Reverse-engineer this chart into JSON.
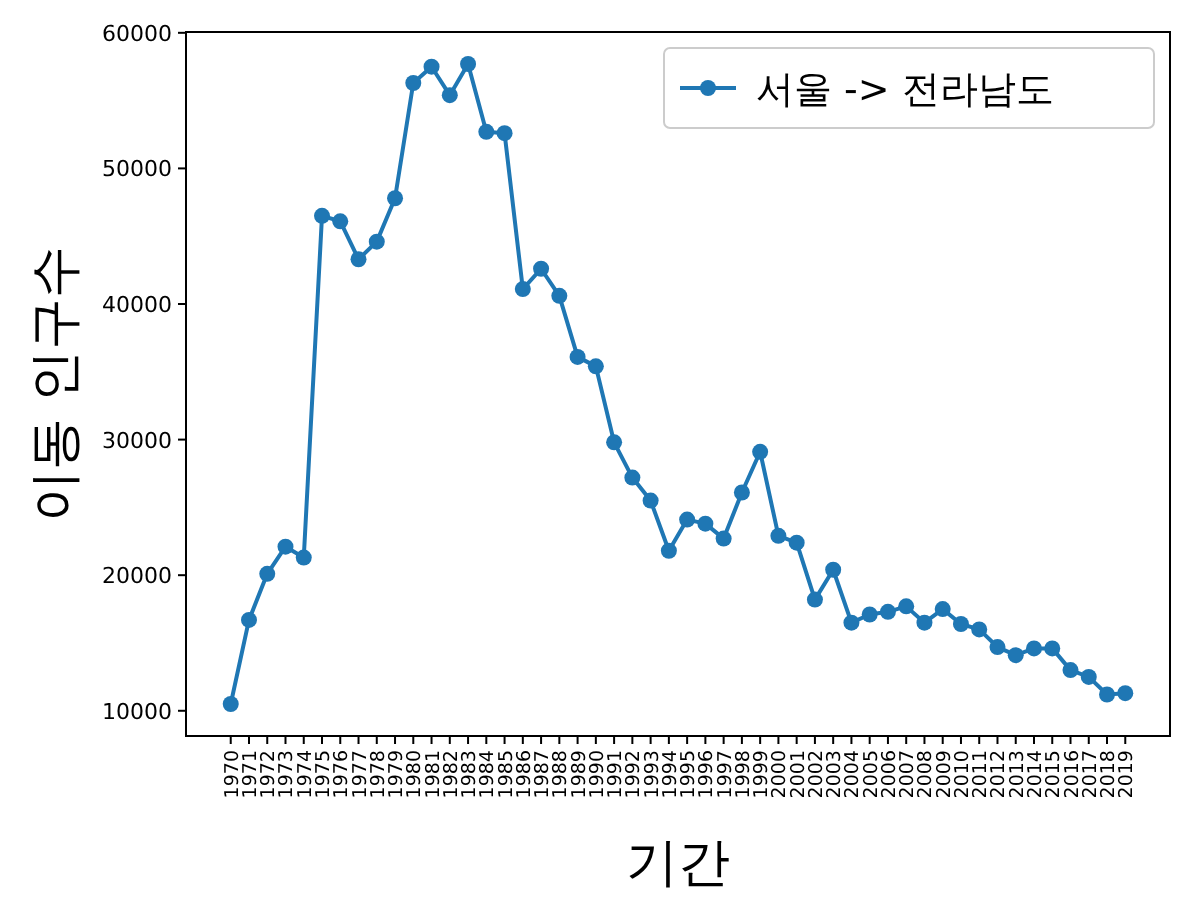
{
  "chart_data": {
    "type": "line",
    "xlabel": "기간",
    "ylabel": "이동 인구수",
    "categories": [
      "1970",
      "1971",
      "1972",
      "1973",
      "1974",
      "1975",
      "1976",
      "1977",
      "1978",
      "1979",
      "1980",
      "1981",
      "1982",
      "1983",
      "1984",
      "1985",
      "1986",
      "1987",
      "1988",
      "1989",
      "1990",
      "1991",
      "1992",
      "1993",
      "1994",
      "1995",
      "1996",
      "1997",
      "1998",
      "1999",
      "2000",
      "2001",
      "2002",
      "2003",
      "2004",
      "2005",
      "2006",
      "2007",
      "2008",
      "2009",
      "2010",
      "2011",
      "2012",
      "2013",
      "2014",
      "2015",
      "2016",
      "2017",
      "2018",
      "2019"
    ],
    "series": [
      {
        "name": "서울 -> 전라남도",
        "color": "#1f77b4",
        "values": [
          10500,
          16700,
          20100,
          22100,
          21300,
          46500,
          46100,
          43300,
          44600,
          47800,
          56300,
          57500,
          55400,
          57700,
          52700,
          52600,
          41100,
          42600,
          40600,
          36100,
          35400,
          29800,
          27200,
          25500,
          21800,
          24100,
          23800,
          22700,
          26100,
          29100,
          22900,
          22400,
          18200,
          20400,
          16500,
          17100,
          17300,
          17700,
          16500,
          17500,
          16400,
          16000,
          14700,
          14100,
          14600,
          14600,
          13000,
          12500,
          11200,
          11300
        ]
      }
    ],
    "ylim": [
      8140,
      60060
    ],
    "yticks": [
      10000,
      20000,
      30000,
      40000,
      50000,
      60000
    ],
    "legend": "top right",
    "marker": "circle",
    "line_style": "solid"
  }
}
